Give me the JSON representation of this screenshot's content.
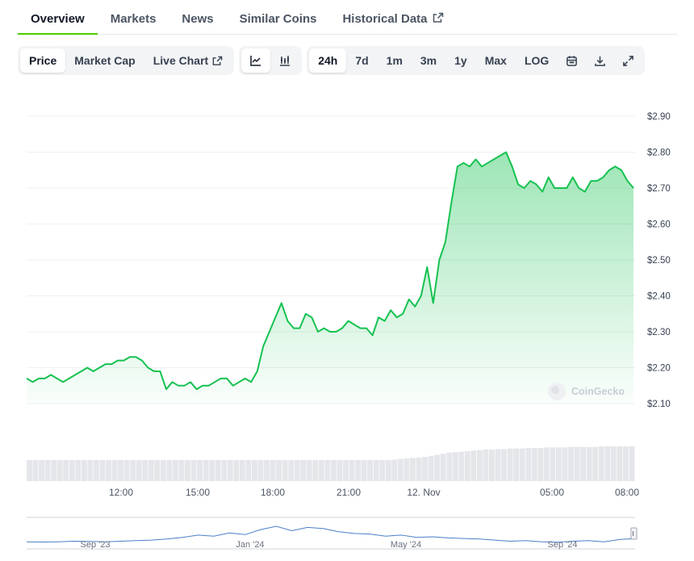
{
  "tabs": [
    {
      "label": "Overview",
      "active": true
    },
    {
      "label": "Markets"
    },
    {
      "label": "News"
    },
    {
      "label": "Similar Coins"
    },
    {
      "label": "Historical Data",
      "external": true
    }
  ],
  "toolbar": {
    "metrics": [
      {
        "label": "Price",
        "active": true
      },
      {
        "label": "Market Cap"
      },
      {
        "label": "Live Chart",
        "external": true
      }
    ],
    "chart_types": [
      {
        "icon": "line-chart-icon",
        "active": true
      },
      {
        "icon": "candlestick-chart-icon"
      }
    ],
    "ranges": [
      {
        "label": "24h",
        "active": true
      },
      {
        "label": "7d"
      },
      {
        "label": "1m"
      },
      {
        "label": "3m"
      },
      {
        "label": "1y"
      },
      {
        "label": "Max"
      },
      {
        "label": "LOG"
      }
    ],
    "actions": [
      "calendar-icon",
      "download-icon",
      "expand-icon"
    ]
  },
  "colors": {
    "accent": "#4bcc00",
    "line": "#16c251",
    "fill": "#bff0cc",
    "volume": "#e4e6ea",
    "navigator_line": "#4a7fc9"
  },
  "watermark": "CoinGecko",
  "chart_data": {
    "type": "area",
    "title": "",
    "xlabel": "",
    "ylabel": "",
    "ylim": [
      2.1,
      2.9
    ],
    "yticks": [
      "$2.90",
      "$2.80",
      "$2.70",
      "$2.60",
      "$2.50",
      "$2.40",
      "$2.30",
      "$2.20",
      "$2.10"
    ],
    "x_ticks": [
      "12:00",
      "15:00",
      "18:00",
      "21:00",
      "12. Nov",
      "05:00",
      "08:00"
    ],
    "grid": true,
    "series": [
      {
        "values": [
          2.17,
          2.16,
          2.17,
          2.17,
          2.18,
          2.17,
          2.16,
          2.17,
          2.18,
          2.19,
          2.2,
          2.19,
          2.2,
          2.21,
          2.21,
          2.22,
          2.22,
          2.23,
          2.23,
          2.22,
          2.2,
          2.19,
          2.19,
          2.14,
          2.16,
          2.15,
          2.15,
          2.16,
          2.14,
          2.15,
          2.15,
          2.16,
          2.17,
          2.17,
          2.15,
          2.16,
          2.17,
          2.16,
          2.19,
          2.26,
          2.3,
          2.34,
          2.38,
          2.33,
          2.31,
          2.31,
          2.35,
          2.34,
          2.3,
          2.31,
          2.3,
          2.3,
          2.31,
          2.33,
          2.32,
          2.31,
          2.31,
          2.29,
          2.34,
          2.33,
          2.36,
          2.34,
          2.35,
          2.39,
          2.37,
          2.4,
          2.48,
          2.38,
          2.5,
          2.55,
          2.66,
          2.76,
          2.77,
          2.76,
          2.78,
          2.76,
          2.77,
          2.78,
          2.79,
          2.8,
          2.76,
          2.71,
          2.7,
          2.72,
          2.71,
          2.69,
          2.73,
          2.7,
          2.7,
          2.7,
          2.73,
          2.7,
          2.69,
          2.72,
          2.72,
          2.73,
          2.75,
          2.76,
          2.75,
          2.72,
          2.7
        ]
      }
    ],
    "volume": [
      4,
      4,
      4,
      4,
      4,
      4,
      4,
      4,
      4,
      4,
      4,
      4,
      4,
      4,
      4,
      4,
      4,
      4,
      4,
      4,
      4,
      4,
      4,
      4,
      4,
      4,
      4,
      4,
      4,
      4,
      4,
      4,
      4,
      4,
      4,
      4,
      4,
      4,
      4,
      4,
      4,
      4,
      4,
      4,
      4,
      4,
      4,
      4,
      4,
      4,
      4,
      4,
      4,
      4,
      4,
      4,
      4,
      4,
      4,
      4,
      4.1,
      4.2,
      4.3,
      4.4,
      4.5,
      4.6,
      4.8,
      5,
      5.2,
      5.4,
      5.5,
      5.6,
      5.7,
      5.8,
      5.9,
      6,
      6,
      6.1,
      6.1,
      6.2,
      6.2,
      6.2,
      6.3,
      6.3,
      6.3,
      6.4,
      6.4,
      6.4,
      6.4,
      6.5,
      6.5,
      6.5,
      6.5,
      6.5,
      6.6,
      6.6,
      6.6,
      6.6,
      6.6,
      6.6
    ],
    "navigator": {
      "labels": [
        "Sep '23",
        "Jan '24",
        "May '24",
        "Sep '24"
      ],
      "values": [
        1.0,
        0.95,
        1.0,
        1.1,
        1.05,
        1.0,
        1.1,
        1.2,
        1.3,
        1.5,
        1.8,
        2.2,
        2.0,
        2.6,
        2.3,
        3.2,
        3.8,
        3.0,
        3.6,
        3.4,
        2.8,
        2.5,
        2.4,
        2.0,
        2.2,
        1.8,
        1.9,
        1.7,
        1.6,
        1.5,
        1.3,
        1.1,
        1.2,
        1.0,
        0.9,
        1.1,
        1.2,
        1.0,
        1.4,
        1.6
      ]
    }
  }
}
